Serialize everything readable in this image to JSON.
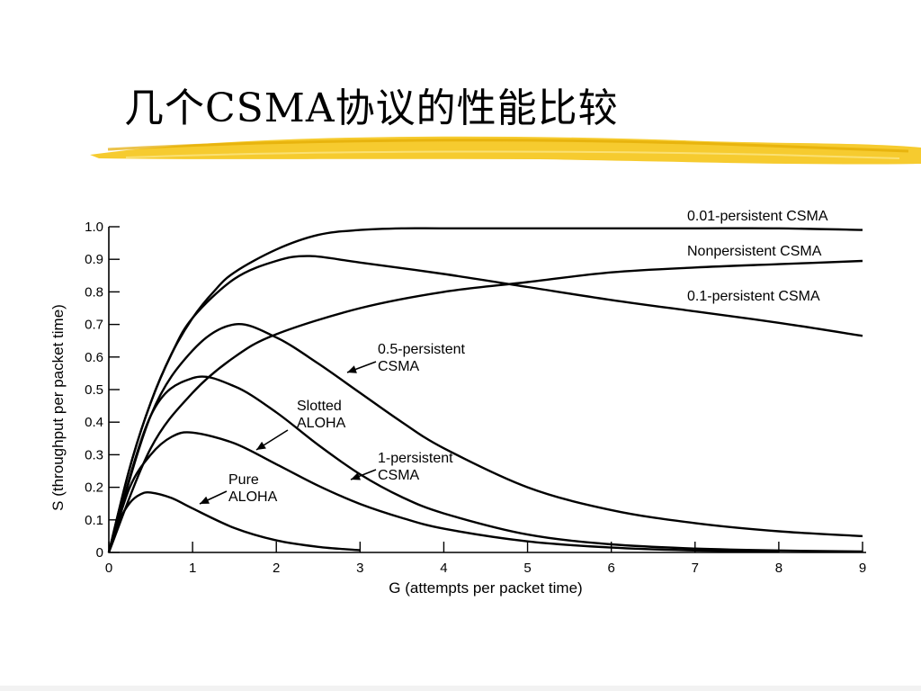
{
  "slide": {
    "title": "几个CSMA协议的性能比较",
    "accent_color": "#f5c518"
  },
  "chart_data": {
    "type": "line",
    "title": "",
    "xlabel": "G (attempts per packet time)",
    "ylabel": "S (throughput per packet time)",
    "xlim": [
      0,
      9
    ],
    "ylim": [
      0,
      1.0
    ],
    "x_ticks": [
      "0",
      "1",
      "2",
      "3",
      "4",
      "5",
      "6",
      "7",
      "8",
      "9"
    ],
    "y_ticks": [
      "0",
      "0.1",
      "0.2",
      "0.3",
      "0.4",
      "0.5",
      "0.6",
      "0.7",
      "0.8",
      "0.9",
      "1.0"
    ],
    "grid": false,
    "series": [
      {
        "name": "0.01-persistent CSMA",
        "label_lines": [
          "0.01-persistent CSMA"
        ],
        "x": [
          0,
          0.25,
          0.5,
          0.75,
          1,
          1.25,
          1.5,
          2,
          2.5,
          3,
          3.5,
          4,
          5,
          6,
          7,
          8,
          9
        ],
        "y": [
          0,
          0.26,
          0.46,
          0.61,
          0.72,
          0.8,
          0.86,
          0.93,
          0.975,
          0.99,
          0.995,
          0.995,
          0.995,
          0.995,
          0.995,
          0.995,
          0.99
        ]
      },
      {
        "name": "Nonpersistent CSMA",
        "label_lines": [
          "Nonpersistent CSMA"
        ],
        "x": [
          0,
          0.5,
          1,
          1.5,
          2,
          3,
          4,
          5,
          6,
          7,
          8,
          9
        ],
        "y": [
          0,
          0.32,
          0.49,
          0.6,
          0.67,
          0.75,
          0.8,
          0.83,
          0.86,
          0.875,
          0.885,
          0.895
        ]
      },
      {
        "name": "0.1-persistent CSMA",
        "label_lines": [
          "0.1-persistent CSMA"
        ],
        "x": [
          0,
          0.25,
          0.5,
          0.75,
          1,
          1.5,
          2,
          2.4,
          3,
          4,
          5,
          6,
          7,
          8,
          9
        ],
        "y": [
          0,
          0.26,
          0.46,
          0.61,
          0.72,
          0.84,
          0.895,
          0.91,
          0.89,
          0.855,
          0.815,
          0.775,
          0.74,
          0.705,
          0.665
        ]
      },
      {
        "name": "0.5-persistent CSMA",
        "label_lines": [
          "0.5-persistent",
          "CSMA"
        ],
        "x": [
          0,
          0.5,
          1,
          1.5,
          2,
          2.5,
          3,
          3.5,
          4,
          5,
          6,
          7,
          8,
          9
        ],
        "y": [
          0,
          0.42,
          0.62,
          0.7,
          0.66,
          0.58,
          0.49,
          0.4,
          0.32,
          0.2,
          0.13,
          0.09,
          0.065,
          0.05
        ]
      },
      {
        "name": "Slotted ALOHA",
        "label_lines": [
          "Slotted",
          "ALOHA"
        ],
        "x": [
          0,
          0.25,
          0.5,
          0.75,
          1,
          1.5,
          2,
          2.5,
          3,
          3.5,
          4,
          5,
          6,
          7,
          8
        ],
        "y": [
          0,
          0.2,
          0.3,
          0.355,
          0.368,
          0.335,
          0.271,
          0.205,
          0.149,
          0.106,
          0.073,
          0.034,
          0.015,
          0.006,
          0.003
        ]
      },
      {
        "name": "1-persistent CSMA",
        "label_lines": [
          "1-persistent",
          "CSMA"
        ],
        "x": [
          0,
          0.5,
          1,
          1.5,
          2,
          2.5,
          3,
          3.5,
          4,
          5,
          6,
          7,
          8,
          9
        ],
        "y": [
          0,
          0.42,
          0.535,
          0.51,
          0.43,
          0.33,
          0.24,
          0.17,
          0.12,
          0.055,
          0.025,
          0.012,
          0.006,
          0.003
        ]
      },
      {
        "name": "Pure ALOHA",
        "label_lines": [
          "Pure",
          "ALOHA"
        ],
        "x": [
          0,
          0.125,
          0.25,
          0.375,
          0.5,
          0.75,
          1,
          1.5,
          2,
          2.5,
          3
        ],
        "y": [
          0,
          0.097,
          0.152,
          0.178,
          0.184,
          0.167,
          0.135,
          0.075,
          0.037,
          0.017,
          0.007
        ]
      }
    ]
  }
}
